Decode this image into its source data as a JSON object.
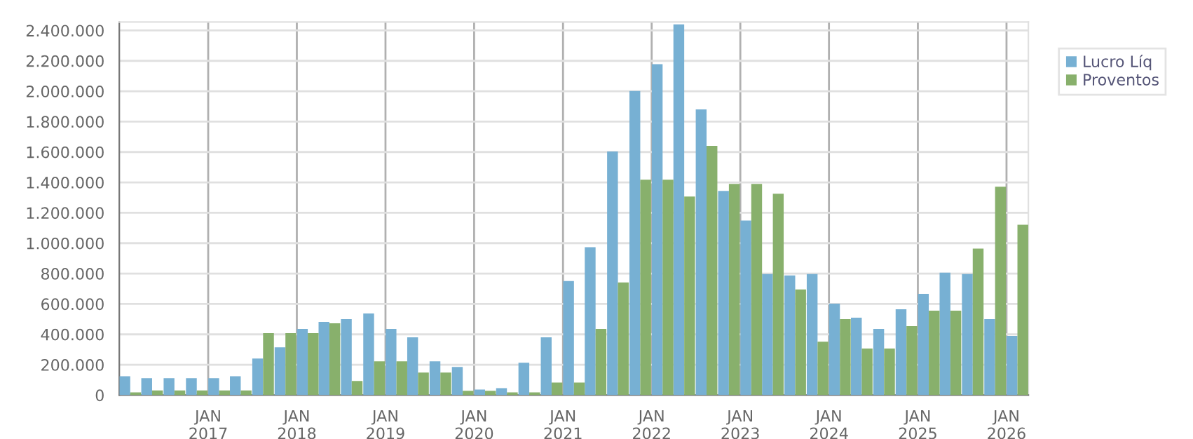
{
  "chart_data": {
    "type": "bar",
    "x": [
      "2016-02-15",
      "2016-05-15",
      "2016-08-15",
      "2016-11-15",
      "2017-02-15",
      "2017-05-15",
      "2017-08-15",
      "2017-11-15",
      "2018-02-15",
      "2018-05-15",
      "2018-08-15",
      "2018-11-15",
      "2019-02-15",
      "2019-05-15",
      "2019-08-15",
      "2019-11-15",
      "2020-02-15",
      "2020-05-15",
      "2020-08-15",
      "2020-11-15",
      "2021-02-15",
      "2021-05-15",
      "2021-08-15",
      "2021-11-15",
      "2022-02-15",
      "2022-05-15",
      "2022-08-15",
      "2022-11-15",
      "2023-02-15",
      "2023-05-15",
      "2023-08-15",
      "2023-11-15",
      "2024-02-15",
      "2024-05-15",
      "2024-08-15",
      "2024-11-15",
      "2025-02-15",
      "2025-05-15",
      "2025-08-15",
      "2025-11-15",
      "2026-02-15"
    ],
    "series": [
      {
        "name": "Lucro Líq",
        "color": "#77b0d3",
        "values": [
          124000,
          111000,
          111000,
          111000,
          111000,
          124000,
          241000,
          315000,
          436000,
          482000,
          500000,
          537000,
          436000,
          380000,
          222000,
          185000,
          37000,
          46000,
          213000,
          380000,
          751000,
          973000,
          1603000,
          2002000,
          2178000,
          2440000,
          1881000,
          1344000,
          1149000,
          797000,
          788000,
          797000,
          602000,
          510000,
          436000,
          565000,
          667000,
          806000,
          797000,
          500000,
          389000
        ]
      },
      {
        "name": "Proventos",
        "color": "#88b06c",
        "values": [
          18000,
          31000,
          31000,
          31000,
          31000,
          31000,
          408000,
          408000,
          408000,
          473000,
          93000,
          222000,
          222000,
          148000,
          148000,
          28000,
          28000,
          18000,
          18000,
          83000,
          83000,
          436000,
          741000,
          1418000,
          1418000,
          1307000,
          1640000,
          1390000,
          1390000,
          1325000,
          695000,
          352000,
          500000,
          306000,
          306000,
          454000,
          556000,
          556000,
          964000,
          1372000,
          1121000
        ]
      }
    ],
    "xlim": [
      "2016-01-01",
      "2026-04-01"
    ],
    "xticks": [
      {
        "value": "2017-01-01",
        "label": "JAN\n2017"
      },
      {
        "value": "2018-01-01",
        "label": "JAN\n2018"
      },
      {
        "value": "2019-01-01",
        "label": "JAN\n2019"
      },
      {
        "value": "2020-01-01",
        "label": "JAN\n2020"
      },
      {
        "value": "2021-01-01",
        "label": "JAN\n2021"
      },
      {
        "value": "2022-01-01",
        "label": "JAN\n2022"
      },
      {
        "value": "2023-01-01",
        "label": "JAN\n2023"
      },
      {
        "value": "2024-01-01",
        "label": "JAN\n2024"
      },
      {
        "value": "2025-01-01",
        "label": "JAN\n2025"
      },
      {
        "value": "2026-01-01",
        "label": "JAN\n2026"
      }
    ],
    "ylim": [
      0,
      2456000
    ],
    "yticks": [
      {
        "value": 0,
        "label": "0"
      },
      {
        "value": 200000,
        "label": "200.000"
      },
      {
        "value": 400000,
        "label": "400.000"
      },
      {
        "value": 600000,
        "label": "600.000"
      },
      {
        "value": 800000,
        "label": "800.000"
      },
      {
        "value": 1000000,
        "label": "1.000.000"
      },
      {
        "value": 1200000,
        "label": "1.200.000"
      },
      {
        "value": 1400000,
        "label": "1.400.000"
      },
      {
        "value": 1600000,
        "label": "1.600.000"
      },
      {
        "value": 1800000,
        "label": "1.800.000"
      },
      {
        "value": 2000000,
        "label": "2.000.000"
      },
      {
        "value": 2200000,
        "label": "2.200.000"
      },
      {
        "value": 2400000,
        "label": "2.400.000"
      }
    ],
    "grid": true,
    "legend": "top right"
  }
}
